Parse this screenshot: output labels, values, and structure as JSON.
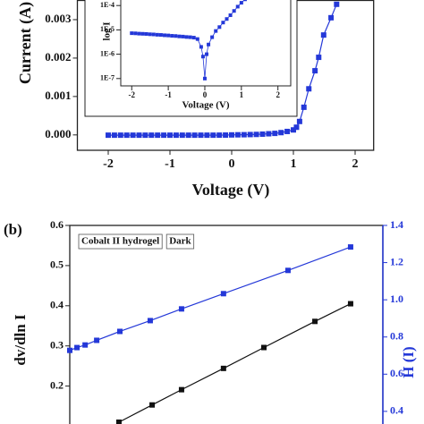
{
  "chart_data": [
    {
      "type": "line",
      "xlabel": "Voltage (V)",
      "ylabel": "Current (A)",
      "xlim": [
        -2.5,
        2.3
      ],
      "ylim": [
        -0.0004,
        0.0035
      ],
      "xticks": [
        -2,
        -1,
        0,
        1,
        2
      ],
      "yticks": [
        {
          "value": 0,
          "label": "0.000"
        },
        0.001,
        0.002,
        0.003
      ],
      "series": [
        {
          "color": "#2438d8",
          "x": [
            -2.0,
            -1.9,
            -1.8,
            -1.7,
            -1.6,
            -1.5,
            -1.4,
            -1.3,
            -1.2,
            -1.1,
            -1.0,
            -0.9,
            -0.8,
            -0.7,
            -0.6,
            -0.5,
            -0.4,
            -0.3,
            -0.2,
            -0.1,
            0.0,
            0.1,
            0.2,
            0.3,
            0.4,
            0.5,
            0.6,
            0.7,
            0.8,
            0.9,
            1.0,
            1.05,
            1.1,
            1.17,
            1.25,
            1.35,
            1.41,
            1.49,
            1.61,
            1.7
          ],
          "values": [
            -7e-06,
            -7e-06,
            -7e-06,
            -7e-06,
            -7e-06,
            -7e-06,
            -7e-06,
            -7e-06,
            -7e-06,
            -7e-06,
            -7e-06,
            -7e-06,
            -7e-06,
            -7e-06,
            -7e-06,
            -7e-06,
            -7e-06,
            -7e-06,
            -6e-06,
            -4e-06,
            0,
            3e-06,
            5e-06,
            9e-06,
            1.3e-05,
            2e-05,
            3e-05,
            4e-05,
            6e-05,
            9e-05,
            0.00013,
            0.0002,
            0.00035,
            0.00072,
            0.0012,
            0.00167,
            0.00202,
            0.0026,
            0.00305,
            0.0034
          ]
        }
      ]
    },
    {
      "type": "line",
      "xlabel": "Voltage (V)",
      "ylabel": "log I",
      "ylog": true,
      "xlim": [
        -2.3,
        2.35
      ],
      "ylim": [
        5e-08,
        0.0002
      ],
      "xticks": [
        -2,
        -1,
        0,
        1,
        2
      ],
      "yticks": [
        {
          "value": 1e-07,
          "label": "1E-7"
        },
        {
          "value": 1e-06,
          "label": "1E-6"
        },
        {
          "value": 1e-05,
          "label": "1E-5"
        },
        {
          "value": 0.0001,
          "label": "1E-4"
        }
      ],
      "series": [
        {
          "color": "#2438d8",
          "x": [
            -2.0,
            -1.9,
            -1.8,
            -1.7,
            -1.6,
            -1.5,
            -1.4,
            -1.3,
            -1.2,
            -1.1,
            -1.0,
            -0.9,
            -0.8,
            -0.7,
            -0.6,
            -0.5,
            -0.4,
            -0.3,
            -0.2,
            -0.1,
            -0.05,
            0.0,
            0.05,
            0.1,
            0.2,
            0.3,
            0.4,
            0.5,
            0.6,
            0.7,
            0.8,
            0.9,
            1.0,
            1.1
          ],
          "values": [
            7.3e-06,
            7.2e-06,
            7e-06,
            6.9e-06,
            6.8e-06,
            6.6e-06,
            6.5e-06,
            6.3e-06,
            6.2e-06,
            6e-06,
            5.9e-06,
            5.7e-06,
            5.6e-06,
            5.4e-06,
            5.3e-06,
            5.1e-06,
            5e-06,
            4.8e-06,
            4.2e-06,
            2e-06,
            8e-07,
            1e-07,
            1e-06,
            2.5e-06,
            5e-06,
            9e-06,
            1.3e-05,
            2e-05,
            2.8e-05,
            4e-05,
            6e-05,
            9e-05,
            0.00013,
            0.00018
          ]
        }
      ]
    },
    {
      "type": "line",
      "panel_label": "(b)",
      "ylabel": "dv/dln I",
      "y2label": "H (I)",
      "annotations": [
        "Cobalt II hydrogel",
        "Dark"
      ],
      "xlim": [
        0,
        100
      ],
      "ylim": [
        0.1,
        0.6
      ],
      "y2lim": [
        0.32,
        1.4
      ],
      "yticks": [
        0.2,
        0.3,
        0.4,
        0.5,
        0.6
      ],
      "y2ticks": [
        0.4,
        0.6,
        0.8,
        {
          "value": 1,
          "label": "1.0"
        },
        1.2,
        1.4
      ],
      "y2color": "#2438d8",
      "series": [
        {
          "color": "#111111",
          "x": [
            15.7,
            26.3,
            35.7,
            49.1,
            62,
            78.3,
            89.7
          ],
          "values": [
            0.11,
            0.153,
            0.191,
            0.244,
            0.296,
            0.361,
            0.405
          ]
        },
        {
          "color": "#2438d8",
          "axis": "y2",
          "x": [
            0,
            2.3,
            4.9,
            8.6,
            16,
            25.7,
            35.7,
            49.1,
            69.7,
            89.7
          ],
          "values": [
            0.728,
            0.743,
            0.757,
            0.782,
            0.83,
            0.888,
            0.951,
            1.033,
            1.158,
            1.284
          ]
        }
      ]
    }
  ]
}
